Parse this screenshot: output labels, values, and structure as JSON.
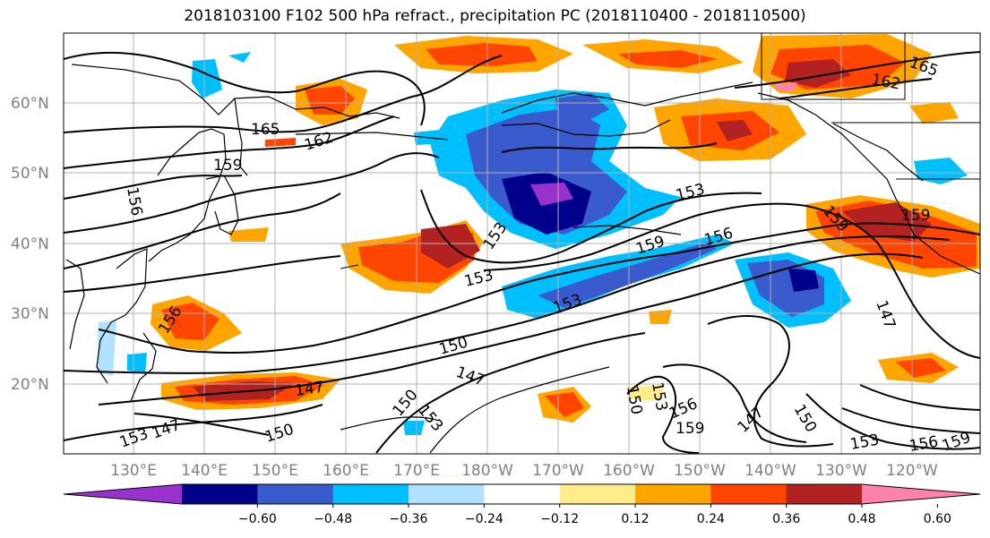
{
  "title": "2018103100 F102 500 hPa refract., precipitation PC (2018110400 - 2018110500)",
  "lat_labels": [
    "60°N",
    "50°N",
    "40°N",
    "30°N",
    "20°N"
  ],
  "lon_labels": [
    "130°E",
    "140°E",
    "150°E",
    "160°E",
    "170°E",
    "180°W",
    "170°W",
    "160°W",
    "150°W",
    "140°W",
    "130°W",
    "120°W"
  ],
  "colorbar": {
    "colors": [
      "#9932cc",
      "#00008b",
      "#3a5bcd",
      "#00bfff",
      "#b0e2ff",
      "#ffffff",
      "#ffec8b",
      "#ffa500",
      "#ff4500",
      "#b22222",
      "#ff82ab"
    ],
    "labels": [
      "−0.60",
      "−0.48",
      "−0.36",
      "−0.24",
      "−0.12",
      "0.12",
      "0.24",
      "0.36",
      "0.48",
      "0.60"
    ]
  },
  "contour_labels": [
    "165",
    "162",
    "159",
    "156",
    "153",
    "150",
    "147",
    "153",
    "159",
    "156",
    "153",
    "147",
    "159",
    "162",
    "165",
    "159",
    "147",
    "156",
    "153",
    "150",
    "147",
    "153",
    "150",
    "150",
    "153",
    "156",
    "159",
    "147",
    "150",
    "153",
    "156",
    "159",
    "153"
  ]
}
